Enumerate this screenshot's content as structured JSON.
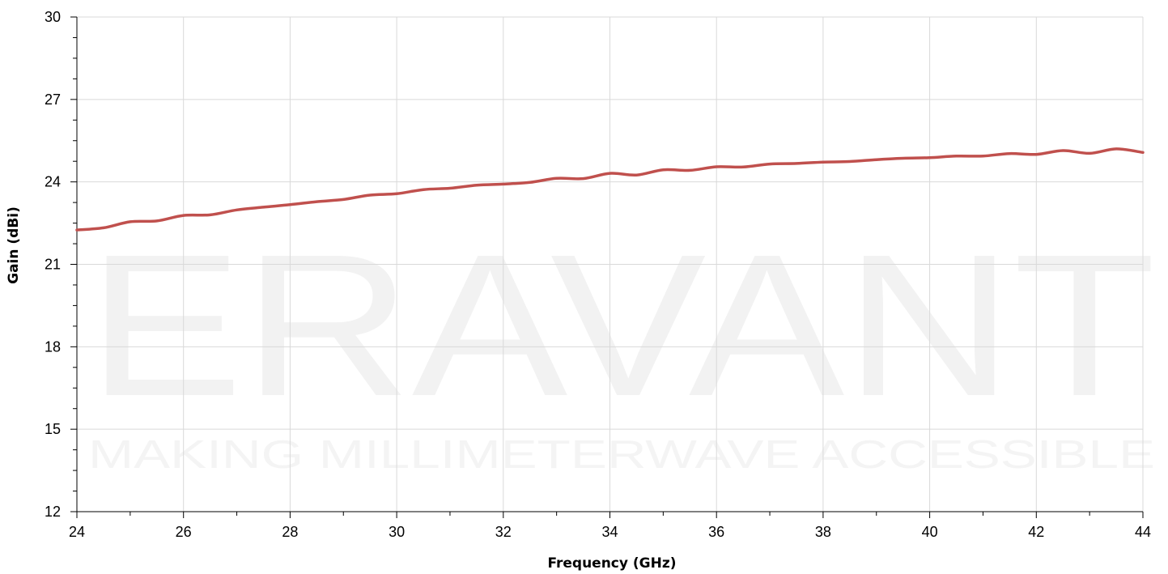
{
  "watermark": {
    "brand": "ERAVANT",
    "tagline": "MAKING MILLIMETERWAVE ACCESSIBLE"
  },
  "colors": {
    "series": "#c0504d",
    "grid": "#d9d9d9",
    "axis": "#000000"
  },
  "chart_data": {
    "type": "line",
    "title": "",
    "xlabel": "Frequency (GHz)",
    "ylabel": "Gain (dBi)",
    "xlim": [
      24,
      44
    ],
    "ylim": [
      12,
      30
    ],
    "xticks": [
      24,
      26,
      28,
      30,
      32,
      34,
      36,
      38,
      40,
      42,
      44
    ],
    "yticks": [
      12,
      15,
      18,
      21,
      24,
      27,
      30
    ],
    "grid": true,
    "legend": "none",
    "series": [
      {
        "x": [
          24,
          24.5,
          25,
          25.5,
          26,
          26.5,
          27,
          27.5,
          28,
          28.5,
          29,
          29.5,
          30,
          30.5,
          31,
          31.5,
          32,
          32.5,
          33,
          33.5,
          34,
          34.5,
          35,
          35.5,
          36,
          36.5,
          37,
          37.5,
          38,
          38.5,
          39,
          39.5,
          40,
          40.5,
          41,
          41.5,
          42,
          42.5,
          43,
          43.5,
          44
        ],
        "y": [
          22.25,
          22.33,
          22.55,
          22.58,
          22.78,
          22.8,
          22.98,
          23.08,
          23.17,
          23.28,
          23.36,
          23.52,
          23.57,
          23.72,
          23.77,
          23.88,
          23.92,
          23.98,
          24.13,
          24.12,
          24.31,
          24.25,
          24.44,
          24.42,
          24.55,
          24.54,
          24.65,
          24.67,
          24.72,
          24.74,
          24.81,
          24.86,
          24.88,
          24.94,
          24.94,
          25.03,
          25.0,
          25.14,
          25.04,
          25.2,
          25.07
        ]
      }
    ]
  }
}
